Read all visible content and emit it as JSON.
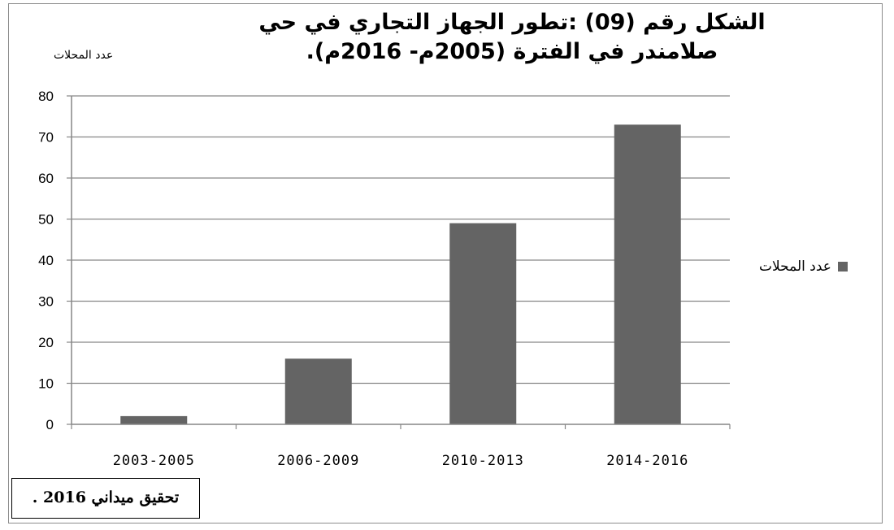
{
  "chart_data": {
    "type": "bar",
    "title": "الشكل رقم (09) :تطور الجهاز التجاري في حي صلامندر في الفترة (2005م- 2016م).",
    "ylabel": "عدد المحلات",
    "xlabel": "",
    "categories": [
      "2003-2005",
      "2006-2009",
      "2010-2013",
      "2014-2016"
    ],
    "series": [
      {
        "name": "عدد المحلات",
        "values": [
          2,
          16,
          49,
          73
        ],
        "color": "#646464"
      }
    ],
    "ylim": [
      0,
      80
    ],
    "yticks": [
      0,
      10,
      20,
      30,
      40,
      50,
      60,
      70,
      80
    ],
    "grid": true,
    "legend_position": "right"
  },
  "source_note": "تحقيق ميداني 2016 ."
}
